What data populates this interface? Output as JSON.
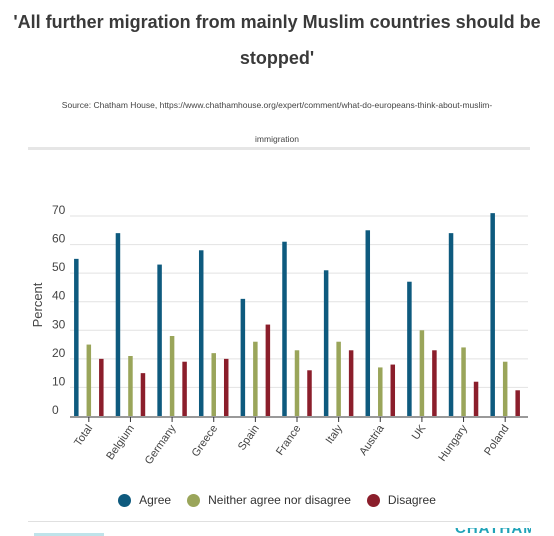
{
  "title_lines": [
    "'All further migration from mainly Muslim countries should be",
    "stopped'"
  ],
  "source_lines": [
    "Source: Chatham House, https://www.chathamhouse.org/expert/comment/what-do-europeans-think-about-muslim-",
    "immigration"
  ],
  "brand": "CHATHAM",
  "colors": {
    "agree": "#0e5a7e",
    "neutral": "#9aa55a",
    "disagree": "#8b1e2b"
  },
  "chart_data": {
    "type": "bar",
    "title": "'All further migration from mainly Muslim countries should be stopped'",
    "ylabel": "Percent",
    "xlabel": "",
    "ylim": [
      0,
      70
    ],
    "yticks": [
      0,
      10,
      20,
      30,
      40,
      50,
      60,
      70
    ],
    "grid": true,
    "legend_position": "bottom",
    "categories": [
      "Total",
      "Belgium",
      "Germany",
      "Greece",
      "Spain",
      "France",
      "Italy",
      "Austria",
      "UK",
      "Hungary",
      "Poland"
    ],
    "series": [
      {
        "name": "Agree",
        "color": "#0e5a7e",
        "values": [
          55,
          64,
          53,
          58,
          41,
          61,
          51,
          65,
          47,
          64,
          71
        ]
      },
      {
        "name": "Neither agree nor disagree",
        "color": "#9aa55a",
        "values": [
          25,
          21,
          28,
          22,
          26,
          23,
          26,
          17,
          30,
          24,
          19
        ]
      },
      {
        "name": "Disagree",
        "color": "#8b1e2b",
        "values": [
          20,
          15,
          19,
          20,
          32,
          16,
          23,
          18,
          23,
          12,
          9
        ]
      }
    ]
  }
}
